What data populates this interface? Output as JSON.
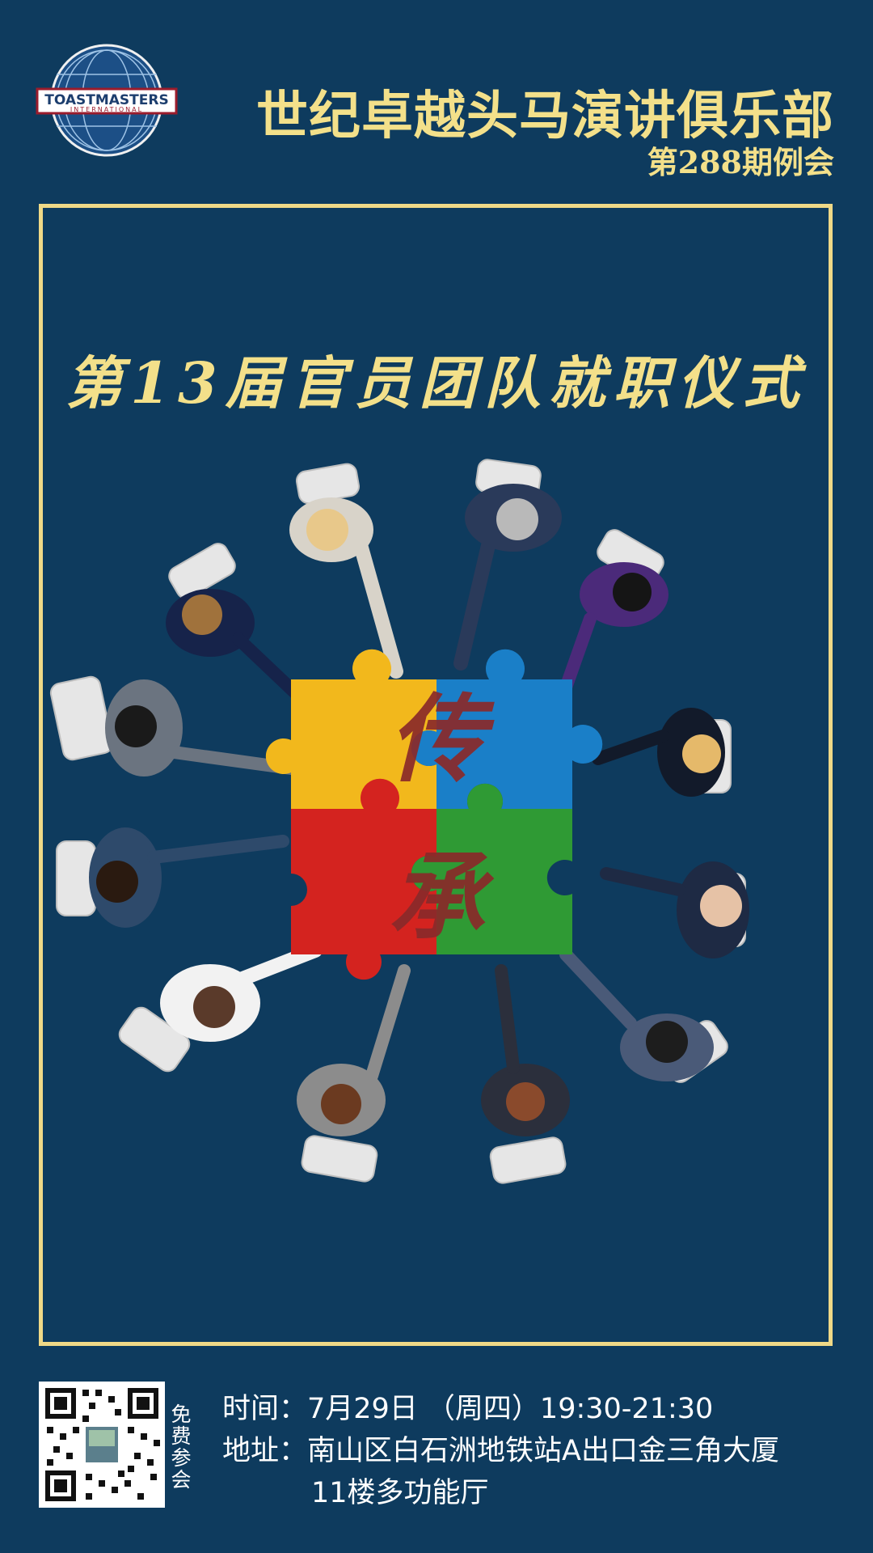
{
  "header": {
    "logo_text_top": "TOASTMASTERS",
    "logo_text_bottom": "INTERNATIONAL",
    "club_name": "世纪卓越头马演讲俱乐部",
    "meeting_number": "第288期例会"
  },
  "event": {
    "title": "第13届官员团队就职仪式",
    "puzzle_char_top": "传",
    "puzzle_char_bottom": "承"
  },
  "footer": {
    "free_label": "免费参会",
    "time_label": "时间：",
    "time_value": "7月29日 （周四）19:30-21:30",
    "address_label": "地址：",
    "address_line1": "南山区白石洲地铁站A出口金三角大厦",
    "address_line2": "11楼多功能厅"
  },
  "colors": {
    "background": "#0e3b5e",
    "accent_gold": "#f3e08a",
    "puzzle_yellow": "#f2b81c",
    "puzzle_blue": "#1a7fc8",
    "puzzle_red": "#d4231f",
    "puzzle_green": "#2f9a34",
    "calligraphy": "#8a2a2a"
  }
}
